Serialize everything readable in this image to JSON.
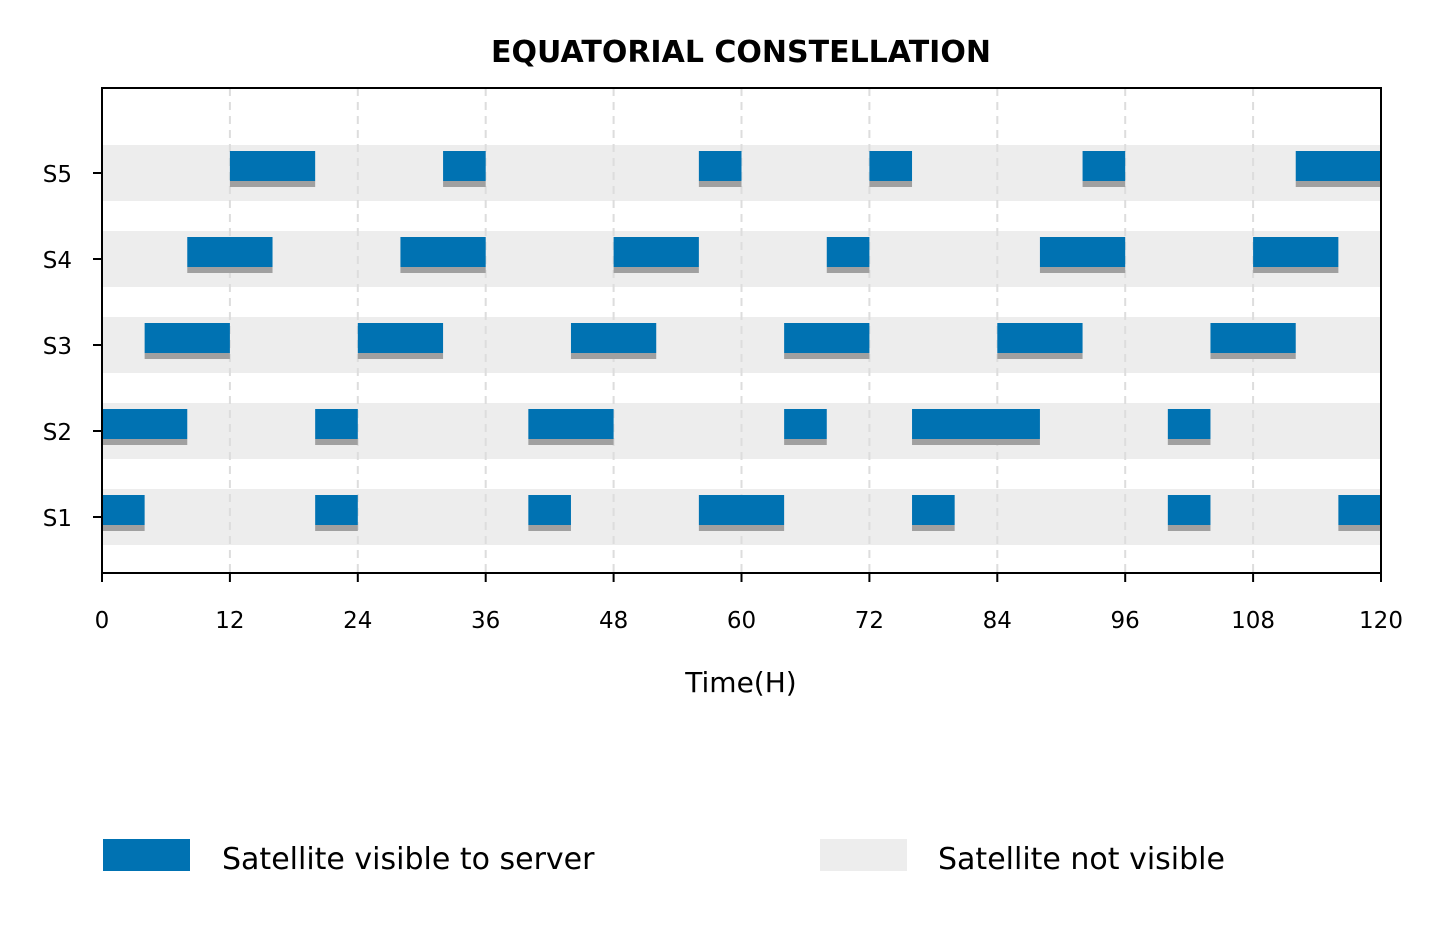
{
  "chart_data": {
    "type": "bar",
    "subtype": "timeline",
    "title": "EQUATORIAL CONSTELLATION",
    "xlabel": "Time(H)",
    "ylabel": "",
    "xlim": [
      0,
      120
    ],
    "xticks": [
      0,
      12,
      24,
      36,
      48,
      60,
      72,
      84,
      96,
      108,
      120
    ],
    "categories": [
      "S1",
      "S2",
      "S3",
      "S4",
      "S5"
    ],
    "grid": "vertical dashed",
    "legend_position": "bottom",
    "legend": [
      {
        "label": "Satellite visible to server",
        "color": "#0072B2"
      },
      {
        "label": "Satellite not visible",
        "color": "#EDEDED"
      }
    ],
    "colors": {
      "visible": "#0072B2",
      "not_visible": "#EDEDED",
      "shadow": "#A0A0A0"
    },
    "series": [
      {
        "category": "S1",
        "intervals": [
          [
            0,
            4
          ],
          [
            20,
            24
          ],
          [
            40,
            44
          ],
          [
            56,
            64
          ],
          [
            76,
            80
          ],
          [
            100,
            104
          ],
          [
            116,
            120
          ]
        ]
      },
      {
        "category": "S2",
        "intervals": [
          [
            0,
            8
          ],
          [
            20,
            24
          ],
          [
            40,
            48
          ],
          [
            64,
            68
          ],
          [
            76,
            88
          ],
          [
            100,
            104
          ]
        ]
      },
      {
        "category": "S3",
        "intervals": [
          [
            4,
            12
          ],
          [
            24,
            32
          ],
          [
            44,
            52
          ],
          [
            64,
            72
          ],
          [
            84,
            92
          ],
          [
            104,
            112
          ]
        ]
      },
      {
        "category": "S4",
        "intervals": [
          [
            8,
            16
          ],
          [
            28,
            36
          ],
          [
            48,
            56
          ],
          [
            68,
            72
          ],
          [
            88,
            96
          ],
          [
            108,
            116
          ]
        ]
      },
      {
        "category": "S5",
        "intervals": [
          [
            12,
            20
          ],
          [
            32,
            36
          ],
          [
            56,
            60
          ],
          [
            72,
            76
          ],
          [
            92,
            96
          ],
          [
            112,
            120
          ]
        ]
      }
    ]
  }
}
